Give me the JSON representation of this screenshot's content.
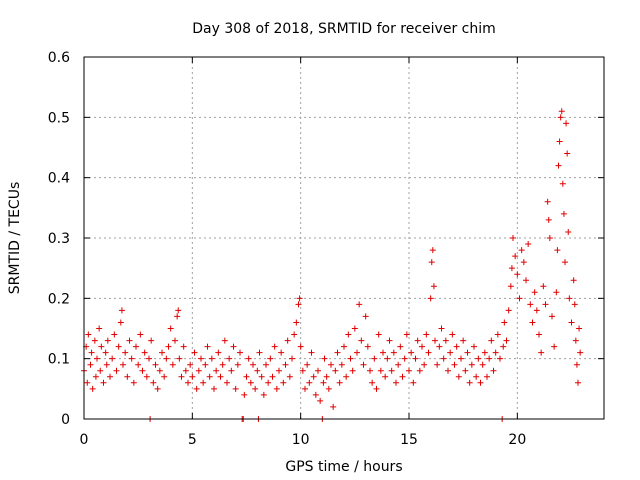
{
  "chart_data": {
    "type": "scatter",
    "title": "Day 308 of 2018, SRMTID for receiver chim",
    "xlabel": "GPS time / hours",
    "ylabel": "SRMTID / TECUs",
    "xlim": [
      0,
      24
    ],
    "ylim": [
      0,
      0.6
    ],
    "grid": true,
    "marker": "plus",
    "color": "#e00000",
    "x_ticks": [
      {
        "value": 0,
        "label": "0"
      },
      {
        "value": 5,
        "label": "5"
      },
      {
        "value": 10,
        "label": "10"
      },
      {
        "value": 15,
        "label": "15"
      },
      {
        "value": 20,
        "label": "20"
      }
    ],
    "y_ticks": [
      {
        "value": 0,
        "label": "0"
      },
      {
        "value": 0.1,
        "label": "0.1"
      },
      {
        "value": 0.2,
        "label": "0.2"
      },
      {
        "value": 0.3,
        "label": "0.3"
      },
      {
        "value": 0.4,
        "label": "0.4"
      },
      {
        "value": 0.5,
        "label": "0.5"
      },
      {
        "value": 0.6,
        "label": "0.6"
      }
    ],
    "series": [
      {
        "name": "SRMTID",
        "points": [
          [
            0.0,
            0.08
          ],
          [
            0.1,
            0.12
          ],
          [
            0.15,
            0.06
          ],
          [
            0.2,
            0.14
          ],
          [
            0.3,
            0.09
          ],
          [
            0.35,
            0.11
          ],
          [
            0.4,
            0.05
          ],
          [
            0.5,
            0.13
          ],
          [
            0.55,
            0.07
          ],
          [
            0.6,
            0.1
          ],
          [
            0.7,
            0.15
          ],
          [
            0.75,
            0.08
          ],
          [
            0.8,
            0.12
          ],
          [
            0.9,
            0.06
          ],
          [
            1.0,
            0.11
          ],
          [
            1.05,
            0.09
          ],
          [
            1.1,
            0.13
          ],
          [
            1.2,
            0.07
          ],
          [
            1.3,
            0.1
          ],
          [
            1.4,
            0.14
          ],
          [
            1.5,
            0.08
          ],
          [
            1.6,
            0.12
          ],
          [
            1.7,
            0.16
          ],
          [
            1.75,
            0.18
          ],
          [
            1.8,
            0.09
          ],
          [
            1.9,
            0.11
          ],
          [
            2.0,
            0.07
          ],
          [
            2.1,
            0.13
          ],
          [
            2.2,
            0.1
          ],
          [
            2.3,
            0.06
          ],
          [
            2.4,
            0.12
          ],
          [
            2.5,
            0.09
          ],
          [
            2.6,
            0.14
          ],
          [
            2.7,
            0.08
          ],
          [
            2.8,
            0.11
          ],
          [
            2.9,
            0.07
          ],
          [
            3.0,
            0.1
          ],
          [
            3.05,
            0.0
          ],
          [
            3.1,
            0.13
          ],
          [
            3.2,
            0.06
          ],
          [
            3.3,
            0.09
          ],
          [
            3.4,
            0.05
          ],
          [
            3.5,
            0.08
          ],
          [
            3.6,
            0.11
          ],
          [
            3.7,
            0.07
          ],
          [
            3.8,
            0.1
          ],
          [
            3.9,
            0.12
          ],
          [
            4.0,
            0.15
          ],
          [
            4.1,
            0.09
          ],
          [
            4.2,
            0.13
          ],
          [
            4.3,
            0.17
          ],
          [
            4.35,
            0.18
          ],
          [
            4.4,
            0.1
          ],
          [
            4.5,
            0.07
          ],
          [
            4.6,
            0.12
          ],
          [
            4.7,
            0.08
          ],
          [
            4.8,
            0.06
          ],
          [
            4.9,
            0.09
          ],
          [
            5.0,
            0.07
          ],
          [
            5.1,
            0.11
          ],
          [
            5.2,
            0.05
          ],
          [
            5.3,
            0.08
          ],
          [
            5.4,
            0.1
          ],
          [
            5.5,
            0.06
          ],
          [
            5.6,
            0.09
          ],
          [
            5.7,
            0.12
          ],
          [
            5.8,
            0.07
          ],
          [
            5.9,
            0.1
          ],
          [
            6.0,
            0.05
          ],
          [
            6.1,
            0.08
          ],
          [
            6.2,
            0.11
          ],
          [
            6.3,
            0.07
          ],
          [
            6.4,
            0.09
          ],
          [
            6.5,
            0.13
          ],
          [
            6.6,
            0.06
          ],
          [
            6.7,
            0.1
          ],
          [
            6.8,
            0.08
          ],
          [
            6.9,
            0.12
          ],
          [
            7.0,
            0.05
          ],
          [
            7.1,
            0.09
          ],
          [
            7.2,
            0.11
          ],
          [
            7.3,
            0.0
          ],
          [
            7.35,
            0.0
          ],
          [
            7.4,
            0.04
          ],
          [
            7.5,
            0.07
          ],
          [
            7.6,
            0.1
          ],
          [
            7.7,
            0.06
          ],
          [
            7.8,
            0.09
          ],
          [
            7.9,
            0.05
          ],
          [
            8.0,
            0.08
          ],
          [
            8.05,
            0.0
          ],
          [
            8.1,
            0.11
          ],
          [
            8.2,
            0.07
          ],
          [
            8.3,
            0.04
          ],
          [
            8.4,
            0.09
          ],
          [
            8.5,
            0.06
          ],
          [
            8.6,
            0.1
          ],
          [
            8.7,
            0.07
          ],
          [
            8.8,
            0.12
          ],
          [
            8.9,
            0.05
          ],
          [
            9.0,
            0.08
          ],
          [
            9.1,
            0.11
          ],
          [
            9.2,
            0.06
          ],
          [
            9.3,
            0.09
          ],
          [
            9.4,
            0.13
          ],
          [
            9.5,
            0.07
          ],
          [
            9.6,
            0.1
          ],
          [
            9.7,
            0.14
          ],
          [
            9.8,
            0.16
          ],
          [
            9.9,
            0.19
          ],
          [
            9.95,
            0.2
          ],
          [
            10.0,
            0.12
          ],
          [
            10.1,
            0.08
          ],
          [
            10.2,
            0.05
          ],
          [
            10.3,
            0.09
          ],
          [
            10.4,
            0.06
          ],
          [
            10.5,
            0.11
          ],
          [
            10.6,
            0.07
          ],
          [
            10.7,
            0.04
          ],
          [
            10.8,
            0.08
          ],
          [
            10.9,
            0.03
          ],
          [
            11.0,
            0.0
          ],
          [
            11.05,
            0.06
          ],
          [
            11.1,
            0.1
          ],
          [
            11.2,
            0.07
          ],
          [
            11.3,
            0.05
          ],
          [
            11.4,
            0.09
          ],
          [
            11.5,
            0.02
          ],
          [
            11.6,
            0.08
          ],
          [
            11.7,
            0.11
          ],
          [
            11.8,
            0.06
          ],
          [
            11.9,
            0.09
          ],
          [
            12.0,
            0.12
          ],
          [
            12.1,
            0.07
          ],
          [
            12.2,
            0.14
          ],
          [
            12.3,
            0.1
          ],
          [
            12.4,
            0.08
          ],
          [
            12.5,
            0.15
          ],
          [
            12.6,
            0.11
          ],
          [
            12.7,
            0.19
          ],
          [
            12.8,
            0.13
          ],
          [
            12.9,
            0.09
          ],
          [
            13.0,
            0.17
          ],
          [
            13.1,
            0.12
          ],
          [
            13.2,
            0.08
          ],
          [
            13.3,
            0.06
          ],
          [
            13.4,
            0.1
          ],
          [
            13.5,
            0.05
          ],
          [
            13.6,
            0.14
          ],
          [
            13.7,
            0.08
          ],
          [
            13.8,
            0.11
          ],
          [
            13.9,
            0.07
          ],
          [
            14.0,
            0.1
          ],
          [
            14.1,
            0.13
          ],
          [
            14.2,
            0.08
          ],
          [
            14.3,
            0.11
          ],
          [
            14.4,
            0.06
          ],
          [
            14.5,
            0.09
          ],
          [
            14.6,
            0.12
          ],
          [
            14.7,
            0.07
          ],
          [
            14.8,
            0.1
          ],
          [
            14.9,
            0.14
          ],
          [
            15.0,
            0.08
          ],
          [
            15.1,
            0.11
          ],
          [
            15.2,
            0.06
          ],
          [
            15.3,
            0.1
          ],
          [
            15.4,
            0.13
          ],
          [
            15.5,
            0.08
          ],
          [
            15.6,
            0.12
          ],
          [
            15.7,
            0.09
          ],
          [
            15.8,
            0.14
          ],
          [
            15.9,
            0.11
          ],
          [
            16.0,
            0.2
          ],
          [
            16.05,
            0.26
          ],
          [
            16.1,
            0.28
          ],
          [
            16.15,
            0.22
          ],
          [
            16.2,
            0.13
          ],
          [
            16.3,
            0.09
          ],
          [
            16.4,
            0.12
          ],
          [
            16.5,
            0.15
          ],
          [
            16.6,
            0.1
          ],
          [
            16.7,
            0.13
          ],
          [
            16.8,
            0.08
          ],
          [
            16.9,
            0.11
          ],
          [
            17.0,
            0.14
          ],
          [
            17.1,
            0.09
          ],
          [
            17.2,
            0.12
          ],
          [
            17.3,
            0.07
          ],
          [
            17.4,
            0.1
          ],
          [
            17.5,
            0.13
          ],
          [
            17.6,
            0.08
          ],
          [
            17.7,
            0.11
          ],
          [
            17.8,
            0.06
          ],
          [
            17.9,
            0.09
          ],
          [
            18.0,
            0.12
          ],
          [
            18.1,
            0.07
          ],
          [
            18.2,
            0.1
          ],
          [
            18.3,
            0.06
          ],
          [
            18.4,
            0.09
          ],
          [
            18.5,
            0.11
          ],
          [
            18.6,
            0.07
          ],
          [
            18.7,
            0.1
          ],
          [
            18.8,
            0.13
          ],
          [
            18.9,
            0.08
          ],
          [
            19.0,
            0.11
          ],
          [
            19.1,
            0.14
          ],
          [
            19.2,
            0.1
          ],
          [
            19.3,
            0.0
          ],
          [
            19.35,
            0.12
          ],
          [
            19.4,
            0.16
          ],
          [
            19.5,
            0.13
          ],
          [
            19.6,
            0.18
          ],
          [
            19.7,
            0.22
          ],
          [
            19.75,
            0.25
          ],
          [
            19.8,
            0.3
          ],
          [
            19.9,
            0.27
          ],
          [
            20.0,
            0.24
          ],
          [
            20.1,
            0.2
          ],
          [
            20.2,
            0.28
          ],
          [
            20.3,
            0.26
          ],
          [
            20.4,
            0.23
          ],
          [
            20.5,
            0.29
          ],
          [
            20.6,
            0.19
          ],
          [
            20.7,
            0.16
          ],
          [
            20.8,
            0.21
          ],
          [
            20.9,
            0.18
          ],
          [
            21.0,
            0.14
          ],
          [
            21.1,
            0.11
          ],
          [
            21.2,
            0.22
          ],
          [
            21.3,
            0.19
          ],
          [
            21.4,
            0.36
          ],
          [
            21.45,
            0.33
          ],
          [
            21.5,
            0.3
          ],
          [
            21.6,
            0.17
          ],
          [
            21.7,
            0.12
          ],
          [
            21.8,
            0.21
          ],
          [
            21.85,
            0.28
          ],
          [
            21.9,
            0.42
          ],
          [
            21.95,
            0.46
          ],
          [
            22.0,
            0.5
          ],
          [
            22.05,
            0.51
          ],
          [
            22.1,
            0.39
          ],
          [
            22.15,
            0.34
          ],
          [
            22.2,
            0.26
          ],
          [
            22.25,
            0.49
          ],
          [
            22.3,
            0.44
          ],
          [
            22.35,
            0.31
          ],
          [
            22.4,
            0.2
          ],
          [
            22.5,
            0.16
          ],
          [
            22.6,
            0.23
          ],
          [
            22.65,
            0.19
          ],
          [
            22.7,
            0.13
          ],
          [
            22.75,
            0.09
          ],
          [
            22.8,
            0.06
          ],
          [
            22.85,
            0.15
          ],
          [
            22.9,
            0.11
          ]
        ]
      }
    ]
  }
}
